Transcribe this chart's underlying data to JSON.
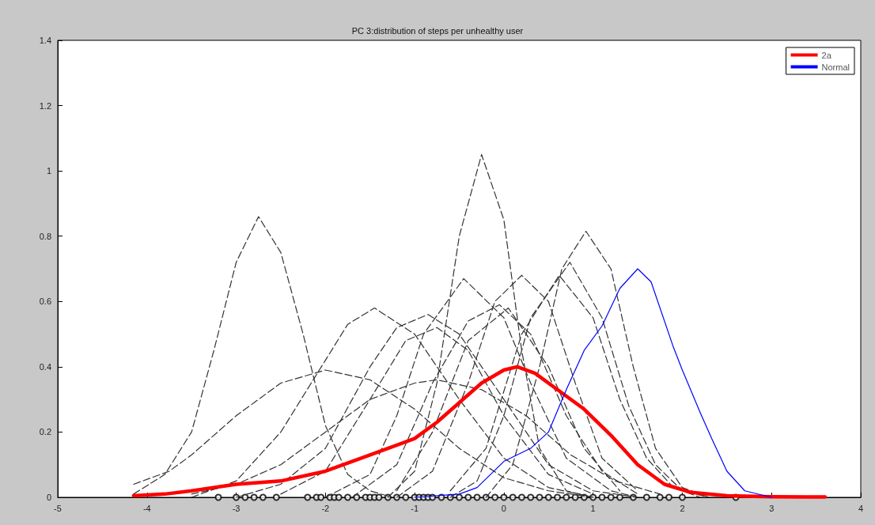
{
  "chart_data": {
    "type": "line",
    "title": "PC 3:distribution of steps per unhealthy user",
    "xlim": [
      -5,
      4
    ],
    "xticks": [
      -5,
      -4,
      -3,
      -2,
      -1,
      0,
      1,
      2,
      3,
      4
    ],
    "ylim": [
      0,
      1.4
    ],
    "yticks": [
      0,
      0.2,
      0.4,
      0.6,
      0.8,
      1,
      1.2,
      1.4
    ],
    "grid": false,
    "legend": "top right",
    "marker": "none",
    "series": [
      {
        "color": "#333333",
        "line_style": "dashed",
        "x": [
          -4.15,
          -3.8,
          -3.5,
          -3.25,
          -3.0,
          -2.75,
          -2.5,
          -2.25,
          -2.0,
          -1.75,
          -1.5,
          -1.25
        ],
        "values": [
          0.01,
          0.07,
          0.2,
          0.45,
          0.72,
          0.86,
          0.75,
          0.5,
          0.22,
          0.07,
          0.02,
          0.0
        ]
      },
      {
        "color": "#333333",
        "line_style": "dashed",
        "x": [
          -4.15,
          -3.75,
          -3.5,
          -3.0,
          -2.5,
          -2.0,
          -1.5,
          -1.0,
          -0.5,
          0,
          0.5,
          1
        ],
        "values": [
          0.04,
          0.08,
          0.13,
          0.25,
          0.35,
          0.39,
          0.36,
          0.27,
          0.15,
          0.06,
          0.02,
          0.0
        ]
      },
      {
        "color": "#333333",
        "line_style": "dashed",
        "x": [
          -3.5,
          -3.0,
          -2.5,
          -2.0,
          -1.75,
          -1.45,
          -1.0,
          -0.5,
          0,
          0.5,
          1
        ],
        "values": [
          0.0,
          0.05,
          0.2,
          0.42,
          0.53,
          0.58,
          0.5,
          0.3,
          0.12,
          0.03,
          0.0
        ]
      },
      {
        "color": "#333333",
        "line_style": "dashed",
        "x": [
          -3,
          -2.5,
          -2,
          -1.5,
          -1.2,
          -0.85,
          -0.5,
          0,
          0.5,
          1,
          1.5
        ],
        "values": [
          0.0,
          0.04,
          0.15,
          0.4,
          0.52,
          0.56,
          0.5,
          0.3,
          0.1,
          0.02,
          0.0
        ]
      },
      {
        "color": "#333333",
        "line_style": "dashed",
        "x": [
          -2.5,
          -2,
          -1.5,
          -1.1,
          -0.75,
          -0.4,
          0,
          0.5,
          1
        ],
        "values": [
          0.01,
          0.08,
          0.3,
          0.48,
          0.52,
          0.45,
          0.25,
          0.07,
          0.01
        ]
      },
      {
        "color": "#333333",
        "line_style": "dashed",
        "x": [
          -3.5,
          -3,
          -2.5,
          -2,
          -1.5,
          -1.0,
          -0.75,
          -0.25,
          0.25,
          0.75,
          1.25,
          1.75
        ],
        "values": [
          0.01,
          0.04,
          0.1,
          0.2,
          0.3,
          0.35,
          0.36,
          0.33,
          0.25,
          0.13,
          0.05,
          0.01
        ]
      },
      {
        "color": "#333333",
        "line_style": "dashed",
        "x": [
          -2,
          -1.5,
          -1.2,
          -0.9,
          -0.45,
          0,
          0.3,
          0.7,
          1.2,
          1.5
        ],
        "values": [
          0.0,
          0.07,
          0.25,
          0.5,
          0.67,
          0.55,
          0.35,
          0.12,
          0.02,
          0.0
        ]
      },
      {
        "color": "#333333",
        "line_style": "dashed",
        "x": [
          -1.3,
          -1,
          -0.75,
          -0.5,
          -0.25,
          0,
          0.2,
          0.4,
          0.7,
          1
        ],
        "values": [
          0.0,
          0.08,
          0.35,
          0.8,
          1.05,
          0.85,
          0.45,
          0.15,
          0.02,
          0.0
        ]
      },
      {
        "color": "#333333",
        "line_style": "dashed",
        "x": [
          -1.7,
          -1.2,
          -0.8,
          -0.4,
          -0.05,
          0.3,
          0.7,
          1.1,
          1.5
        ],
        "values": [
          0.0,
          0.1,
          0.35,
          0.54,
          0.59,
          0.5,
          0.25,
          0.08,
          0.01
        ]
      },
      {
        "color": "#333333",
        "line_style": "dashed",
        "x": [
          -1.2,
          -0.8,
          -0.4,
          0.05,
          0.5,
          0.9,
          1.3
        ],
        "values": [
          0.02,
          0.2,
          0.48,
          0.58,
          0.4,
          0.15,
          0.02
        ]
      },
      {
        "color": "#333333",
        "line_style": "dashed",
        "x": [
          -1.2,
          -0.8,
          -0.4,
          -0.1,
          0.2,
          0.5,
          0.8,
          1.1,
          1.5
        ],
        "values": [
          0.0,
          0.08,
          0.35,
          0.6,
          0.68,
          0.6,
          0.35,
          0.12,
          0.02
        ]
      },
      {
        "color": "#333333",
        "line_style": "dashed",
        "x": [
          -0.6,
          -0.3,
          0,
          0.3,
          0.74,
          1.1,
          1.4,
          1.7,
          2.0,
          2.3
        ],
        "values": [
          0.0,
          0.05,
          0.25,
          0.55,
          0.72,
          0.55,
          0.28,
          0.1,
          0.02,
          0.0
        ]
      },
      {
        "color": "#333333",
        "line_style": "dashed",
        "x": [
          -0.6,
          -0.2,
          0.2,
          0.62,
          1.0,
          1.3,
          1.6,
          1.9,
          2.2
        ],
        "values": [
          0.02,
          0.15,
          0.5,
          0.68,
          0.55,
          0.3,
          0.12,
          0.03,
          0.0
        ]
      },
      {
        "color": "#333333",
        "line_style": "dashed",
        "x": [
          -0.2,
          0.1,
          0.4,
          0.65,
          0.92,
          1.2,
          1.45,
          1.7,
          2.0,
          2.3
        ],
        "values": [
          0.0,
          0.1,
          0.4,
          0.7,
          0.815,
          0.7,
          0.4,
          0.15,
          0.03,
          0.0
        ]
      },
      {
        "name": "2a",
        "color": "#ff0000",
        "line_style": "solid",
        "x": [
          -4.15,
          -3.8,
          -3.5,
          -3.0,
          -2.5,
          -2.0,
          -1.5,
          -1.0,
          -0.75,
          -0.5,
          -0.25,
          0,
          0.15,
          0.35,
          0.6,
          0.9,
          1.2,
          1.5,
          1.8,
          2.1,
          2.5,
          3,
          3.6
        ],
        "values": [
          0.005,
          0.01,
          0.02,
          0.04,
          0.05,
          0.08,
          0.13,
          0.18,
          0.23,
          0.29,
          0.35,
          0.39,
          0.4,
          0.38,
          0.33,
          0.27,
          0.19,
          0.1,
          0.04,
          0.015,
          0.005,
          0.002,
          0.001
        ]
      },
      {
        "name": "Normal",
        "color": "#0000ff",
        "line_style": "solid",
        "x": [
          -1,
          -0.5,
          -0.3,
          0,
          0.3,
          0.5,
          0.7,
          0.9,
          1.1,
          1.3,
          1.5,
          1.65,
          1.9,
          2.0,
          2.2,
          2.33,
          2.5,
          2.7,
          3.0
        ],
        "values": [
          0.0,
          0.01,
          0.03,
          0.11,
          0.15,
          0.2,
          0.33,
          0.45,
          0.525,
          0.64,
          0.7,
          0.66,
          0.46,
          0.39,
          0.26,
          0.18,
          0.08,
          0.02,
          0.0
        ]
      },
      {
        "type": "scatter",
        "marker": "circle",
        "color": "#000000",
        "x": [
          -3.2,
          -3.0,
          -2.9,
          -2.8,
          -2.7,
          -2.55,
          -2.2,
          -2.1,
          -2.05,
          -1.95,
          -1.9,
          -1.85,
          -1.75,
          -1.65,
          -1.55,
          -1.5,
          -1.45,
          -1.4,
          -1.3,
          -1.2,
          -1.1,
          -1.0,
          -0.95,
          -0.9,
          -0.85,
          -0.8,
          -0.7,
          -0.6,
          -0.5,
          -0.4,
          -0.3,
          -0.2,
          -0.1,
          0,
          0.1,
          0.2,
          0.3,
          0.4,
          0.5,
          0.6,
          0.7,
          0.8,
          0.9,
          1.0,
          1.1,
          1.2,
          1.3,
          1.45,
          1.6,
          1.75,
          1.85,
          2.0,
          2.6
        ],
        "values": [
          0,
          0,
          0,
          0,
          0,
          0,
          0,
          0,
          0,
          0,
          0,
          0,
          0,
          0,
          0,
          0,
          0,
          0,
          0,
          0,
          0,
          0,
          0,
          0,
          0,
          0,
          0,
          0,
          0,
          0,
          0,
          0,
          0,
          0,
          0,
          0,
          0,
          0,
          0,
          0,
          0,
          0,
          0,
          0,
          0,
          0,
          0,
          0,
          0,
          0,
          0,
          0,
          0
        ]
      }
    ]
  }
}
